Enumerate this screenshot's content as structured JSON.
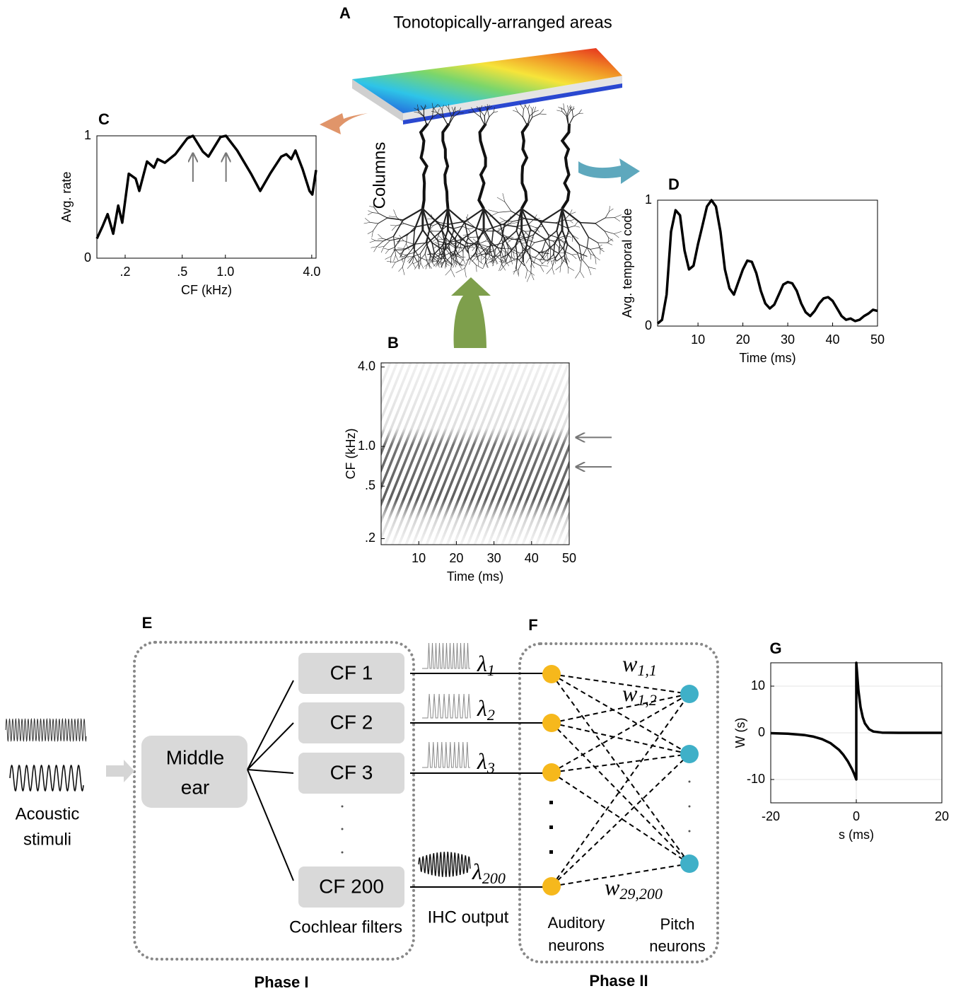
{
  "panel_labels": [
    "A",
    "B",
    "C",
    "D",
    "E",
    "F",
    "G"
  ],
  "tonotopic_title": "Tonotopically-arranged areas",
  "columns_label": "Columns",
  "chart_data": [
    {
      "type": "line",
      "xlabel": "CF (kHz)",
      "ylabel": "Avg. rate",
      "xscale": "log",
      "xlim": [
        0.127,
        4.29
      ],
      "ylim": [
        0,
        1
      ],
      "xticks": [
        {
          "value": 0.2,
          "label": ".2"
        },
        {
          "value": 0.5,
          "label": ".5"
        },
        {
          "value": 1,
          "label": "1.0"
        },
        {
          "value": 4,
          "label": "4.0"
        }
      ],
      "yticks": [
        0,
        1
      ],
      "color": "#000000",
      "x": [
        0.127,
        0.139,
        0.151,
        0.165,
        0.179,
        0.191,
        0.212,
        0.237,
        0.251,
        0.284,
        0.318,
        0.337,
        0.378,
        0.448,
        0.543,
        0.594,
        0.697,
        0.762,
        0.924,
        1.01,
        1.21,
        1.51,
        1.75,
        2.05,
        2.45,
        2.66,
        2.88,
        3.08,
        3.45,
        3.86,
        4.04,
        4.29
      ],
      "values": [
        0.16,
        0.26,
        0.36,
        0.2,
        0.43,
        0.29,
        0.69,
        0.65,
        0.55,
        0.79,
        0.74,
        0.81,
        0.78,
        0.85,
        0.98,
        1.0,
        0.87,
        0.83,
        0.99,
        1.0,
        0.88,
        0.69,
        0.55,
        0.69,
        0.83,
        0.85,
        0.81,
        0.88,
        0.73,
        0.55,
        0.52,
        0.72
      ],
      "arrows_x": [
        0.594,
        1.01
      ]
    },
    {
      "type": "line",
      "xlabel": "Time (ms)",
      "ylabel": "Avg. temporal code",
      "xlim": [
        1,
        50
      ],
      "ylim": [
        0,
        1
      ],
      "xticks": [
        10,
        20,
        30,
        40,
        50
      ],
      "yticks": [
        0,
        1
      ],
      "color": "#000000",
      "x": [
        1,
        2,
        3,
        4,
        5,
        6,
        7,
        8,
        9,
        10,
        11,
        12,
        13,
        14,
        15,
        16,
        17,
        18,
        19,
        20,
        21,
        22,
        23,
        24,
        25,
        26,
        27,
        28,
        29,
        30,
        31,
        32,
        33,
        34,
        35,
        36,
        37,
        38,
        39,
        40,
        41,
        42,
        43,
        44,
        45,
        46,
        47,
        48,
        49,
        50
      ],
      "values": [
        0.02,
        0.05,
        0.25,
        0.75,
        0.92,
        0.88,
        0.6,
        0.45,
        0.48,
        0.65,
        0.8,
        0.95,
        1.0,
        0.95,
        0.75,
        0.45,
        0.3,
        0.25,
        0.35,
        0.45,
        0.52,
        0.51,
        0.42,
        0.28,
        0.18,
        0.14,
        0.17,
        0.25,
        0.33,
        0.35,
        0.34,
        0.28,
        0.18,
        0.11,
        0.08,
        0.12,
        0.18,
        0.22,
        0.23,
        0.2,
        0.14,
        0.08,
        0.05,
        0.06,
        0.04,
        0.05,
        0.08,
        0.1,
        0.13,
        0.12
      ]
    },
    {
      "type": "image",
      "xlabel": "Time (ms)",
      "ylabel": "CF (kHz)",
      "yscale": "log",
      "xlim": [
        0,
        50
      ],
      "ylim": [
        0.18,
        4.3
      ],
      "xticks": [
        10,
        20,
        30,
        40,
        50
      ],
      "yticks": [
        {
          "value": 0.2,
          "label": ".2"
        },
        {
          "value": 0.5,
          "label": ".5"
        },
        {
          "value": 1,
          "label": "1.0"
        },
        {
          "value": 4,
          "label": "4.0"
        }
      ],
      "arrows_y": [
        1.17,
        0.7
      ]
    },
    {
      "type": "line",
      "xlabel": "s (ms)",
      "ylabel": "W (s)",
      "grid": true,
      "xlim": [
        -20,
        20
      ],
      "ylim": [
        -15,
        15
      ],
      "xticks": [
        -20,
        0,
        20
      ],
      "yticks": [
        -10,
        0,
        10
      ],
      "color": "#000000",
      "x": [
        -20,
        -16,
        -12,
        -10,
        -8,
        -6,
        -4,
        -3,
        -2,
        -1,
        -0.5,
        0,
        0,
        0.5,
        1,
        1.5,
        2,
        3,
        4,
        6,
        10,
        20
      ],
      "values": [
        -0.07,
        -0.18,
        -0.5,
        -0.82,
        -1.35,
        -2.23,
        -3.68,
        -4.72,
        -6.07,
        -7.79,
        -8.82,
        -10,
        15,
        9.1,
        5.52,
        3.35,
        2.03,
        0.75,
        0.27,
        0.04,
        0,
        0
      ]
    }
  ],
  "diagram": {
    "middle_ear": [
      "Middle",
      "ear"
    ],
    "filters": [
      "CF 1",
      "CF 2",
      "CF 3",
      "CF 200"
    ],
    "cochlear_filters": "Cochlear filters",
    "ihc_output": "IHC output",
    "acoustic_stimuli": [
      "Acoustic",
      "stimuli"
    ],
    "lambdas": [
      {
        "base": "λ",
        "sub": "1"
      },
      {
        "base": "λ",
        "sub": "2"
      },
      {
        "base": "λ",
        "sub": "3"
      },
      {
        "base": "λ",
        "sub": "200"
      }
    ],
    "weights": [
      {
        "base": "w",
        "sub": "1,1"
      },
      {
        "base": "w",
        "sub": "1,2"
      },
      {
        "base": "w",
        "sub": "29,200"
      }
    ],
    "auditory_neurons": [
      "Auditory",
      "neurons"
    ],
    "pitch_neurons": [
      "Pitch",
      "neurons"
    ],
    "phases": [
      "Phase I",
      "Phase II"
    ]
  }
}
